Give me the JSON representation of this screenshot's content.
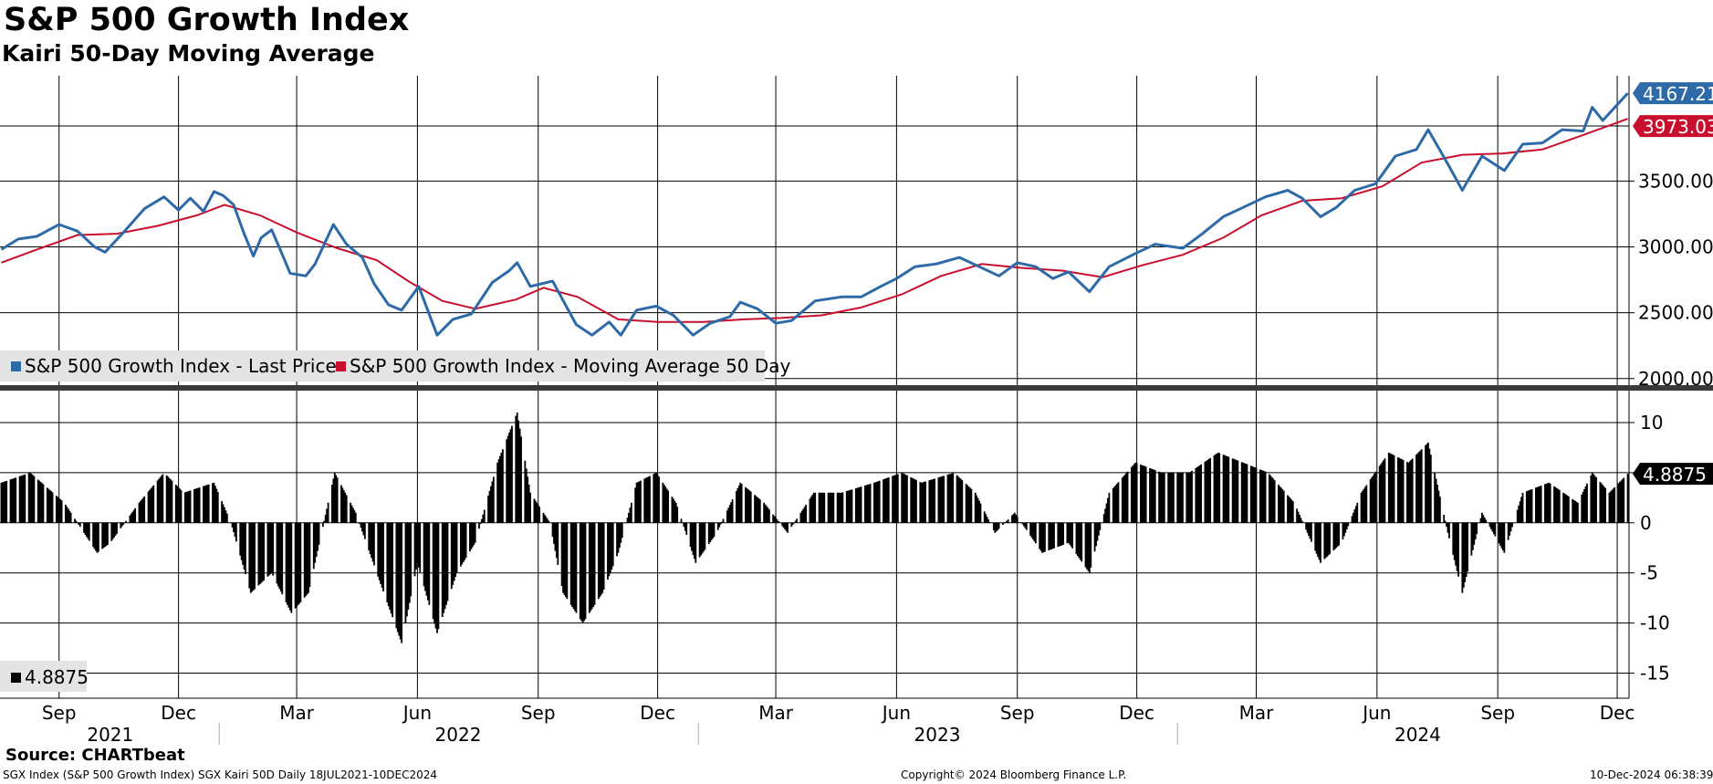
{
  "header": {
    "title": "S&P 500 Growth Index",
    "subtitle": "Kairi 50-Day Moving Average"
  },
  "legend": {
    "last_price": "S&P 500 Growth Index - Last Price",
    "moving_average": "S&P 500 Growth Index - Moving Average 50 Day",
    "kairi": "4.8875"
  },
  "footer": {
    "source": "Source: CHARTbeat",
    "series_info": "SGX Index (S&P 500 Growth Index) SGX Kairi 50D  Daily 18JUL2021-10DEC2024",
    "copyright": "Copyright© 2024 Bloomberg Finance L.P.",
    "timestamp": "10-Dec-2024 06:38:39"
  },
  "colors": {
    "price": "#2e6aa8",
    "moving_average": "#c8102e",
    "kairi": "#000000",
    "last_kairi_tag": "#000000"
  },
  "chart_data": [
    {
      "type": "line",
      "title": "S&P 500 Growth Index",
      "x_range": [
        "2021-07-18",
        "2024-12-10"
      ],
      "ylim": [
        1950,
        4300
      ],
      "y_ticks": [
        2000,
        2500,
        3000,
        3500
      ],
      "y_tick_labels": [
        "2000.00",
        "2500.00",
        "3000.00",
        "3500.00"
      ],
      "last_values": {
        "price": "4167.21",
        "moving_average": "3973.03"
      },
      "series": [
        {
          "name": "S&P 500 Growth Index - Last Price",
          "points": [
            [
              "2021-07-19",
              2980
            ],
            [
              "2021-08-01",
              3060
            ],
            [
              "2021-08-15",
              3080
            ],
            [
              "2021-09-01",
              3170
            ],
            [
              "2021-09-15",
              3120
            ],
            [
              "2021-09-28",
              3000
            ],
            [
              "2021-10-06",
              2960
            ],
            [
              "2021-10-20",
              3110
            ],
            [
              "2021-11-05",
              3290
            ],
            [
              "2021-11-20",
              3380
            ],
            [
              "2021-12-01",
              3280
            ],
            [
              "2021-12-10",
              3370
            ],
            [
              "2021-12-20",
              3270
            ],
            [
              "2021-12-28",
              3420
            ],
            [
              "2022-01-04",
              3390
            ],
            [
              "2022-01-12",
              3320
            ],
            [
              "2022-01-20",
              3100
            ],
            [
              "2022-01-27",
              2930
            ],
            [
              "2022-02-02",
              3070
            ],
            [
              "2022-02-10",
              3130
            ],
            [
              "2022-02-16",
              2990
            ],
            [
              "2022-02-24",
              2800
            ],
            [
              "2022-03-08",
              2780
            ],
            [
              "2022-03-15",
              2870
            ],
            [
              "2022-03-29",
              3170
            ],
            [
              "2022-04-08",
              3020
            ],
            [
              "2022-04-20",
              2920
            ],
            [
              "2022-04-29",
              2720
            ],
            [
              "2022-05-10",
              2560
            ],
            [
              "2022-05-20",
              2520
            ],
            [
              "2022-06-02",
              2700
            ],
            [
              "2022-06-16",
              2330
            ],
            [
              "2022-06-28",
              2450
            ],
            [
              "2022-07-12",
              2490
            ],
            [
              "2022-07-28",
              2730
            ],
            [
              "2022-08-10",
              2820
            ],
            [
              "2022-08-16",
              2880
            ],
            [
              "2022-08-26",
              2700
            ],
            [
              "2022-09-12",
              2740
            ],
            [
              "2022-09-30",
              2410
            ],
            [
              "2022-10-12",
              2330
            ],
            [
              "2022-10-25",
              2430
            ],
            [
              "2022-11-03",
              2330
            ],
            [
              "2022-11-15",
              2520
            ],
            [
              "2022-11-30",
              2550
            ],
            [
              "2022-12-13",
              2480
            ],
            [
              "2022-12-28",
              2330
            ],
            [
              "2023-01-10",
              2420
            ],
            [
              "2023-01-25",
              2470
            ],
            [
              "2023-02-02",
              2580
            ],
            [
              "2023-02-15",
              2530
            ],
            [
              "2023-03-01",
              2420
            ],
            [
              "2023-03-13",
              2440
            ],
            [
              "2023-03-31",
              2590
            ],
            [
              "2023-04-20",
              2620
            ],
            [
              "2023-05-05",
              2620
            ],
            [
              "2023-05-20",
              2700
            ],
            [
              "2023-06-01",
              2760
            ],
            [
              "2023-06-15",
              2850
            ],
            [
              "2023-07-01",
              2870
            ],
            [
              "2023-07-19",
              2920
            ],
            [
              "2023-08-03",
              2850
            ],
            [
              "2023-08-18",
              2780
            ],
            [
              "2023-09-01",
              2880
            ],
            [
              "2023-09-15",
              2850
            ],
            [
              "2023-09-28",
              2760
            ],
            [
              "2023-10-10",
              2810
            ],
            [
              "2023-10-26",
              2660
            ],
            [
              "2023-11-10",
              2850
            ],
            [
              "2023-11-30",
              2950
            ],
            [
              "2023-12-15",
              3020
            ],
            [
              "2024-01-05",
              2990
            ],
            [
              "2024-01-20",
              3100
            ],
            [
              "2024-02-05",
              3230
            ],
            [
              "2024-02-20",
              3300
            ],
            [
              "2024-03-08",
              3380
            ],
            [
              "2024-03-25",
              3430
            ],
            [
              "2024-04-05",
              3370
            ],
            [
              "2024-04-19",
              3230
            ],
            [
              "2024-05-01",
              3300
            ],
            [
              "2024-05-15",
              3430
            ],
            [
              "2024-05-31",
              3480
            ],
            [
              "2024-06-15",
              3690
            ],
            [
              "2024-07-01",
              3740
            ],
            [
              "2024-07-10",
              3890
            ],
            [
              "2024-07-25",
              3630
            ],
            [
              "2024-08-05",
              3430
            ],
            [
              "2024-08-20",
              3690
            ],
            [
              "2024-09-06",
              3580
            ],
            [
              "2024-09-20",
              3780
            ],
            [
              "2024-10-05",
              3790
            ],
            [
              "2024-10-20",
              3890
            ],
            [
              "2024-11-05",
              3880
            ],
            [
              "2024-11-12",
              4060
            ],
            [
              "2024-11-20",
              3960
            ],
            [
              "2024-12-01",
              4080
            ],
            [
              "2024-12-09",
              4167.21
            ]
          ]
        },
        {
          "name": "S&P 500 Growth Index - Moving Average 50 Day",
          "points": [
            [
              "2021-07-19",
              2880
            ],
            [
              "2021-08-15",
              2980
            ],
            [
              "2021-09-15",
              3090
            ],
            [
              "2021-10-15",
              3100
            ],
            [
              "2021-11-15",
              3160
            ],
            [
              "2021-12-15",
              3240
            ],
            [
              "2022-01-05",
              3320
            ],
            [
              "2022-02-01",
              3240
            ],
            [
              "2022-03-01",
              3110
            ],
            [
              "2022-04-01",
              2990
            ],
            [
              "2022-05-01",
              2900
            ],
            [
              "2022-05-25",
              2740
            ],
            [
              "2022-06-20",
              2590
            ],
            [
              "2022-07-15",
              2530
            ],
            [
              "2022-08-15",
              2600
            ],
            [
              "2022-09-05",
              2690
            ],
            [
              "2022-10-01",
              2620
            ],
            [
              "2022-11-01",
              2450
            ],
            [
              "2022-12-01",
              2430
            ],
            [
              "2023-01-05",
              2430
            ],
            [
              "2023-02-05",
              2450
            ],
            [
              "2023-03-05",
              2460
            ],
            [
              "2023-04-05",
              2480
            ],
            [
              "2023-05-05",
              2540
            ],
            [
              "2023-06-05",
              2640
            ],
            [
              "2023-07-05",
              2780
            ],
            [
              "2023-08-05",
              2870
            ],
            [
              "2023-09-05",
              2840
            ],
            [
              "2023-10-05",
              2820
            ],
            [
              "2023-11-05",
              2770
            ],
            [
              "2023-12-05",
              2860
            ],
            [
              "2024-01-05",
              2940
            ],
            [
              "2024-02-05",
              3070
            ],
            [
              "2024-03-05",
              3240
            ],
            [
              "2024-04-05",
              3350
            ],
            [
              "2024-05-05",
              3370
            ],
            [
              "2024-06-05",
              3460
            ],
            [
              "2024-07-05",
              3640
            ],
            [
              "2024-08-05",
              3700
            ],
            [
              "2024-09-05",
              3710
            ],
            [
              "2024-10-05",
              3740
            ],
            [
              "2024-11-05",
              3850
            ],
            [
              "2024-12-09",
              3973.03
            ]
          ]
        }
      ]
    },
    {
      "type": "bar",
      "title": "Kairi 50-Day Moving Average",
      "x_range": [
        "2021-07-18",
        "2024-12-10"
      ],
      "ylim": [
        -17.5,
        13
      ],
      "y_ticks": [
        -15,
        -10,
        -5,
        0,
        5,
        10
      ],
      "y_tick_labels": [
        "-15",
        "-10",
        "-5",
        "0",
        "5",
        "10"
      ],
      "last_value": "4.8875",
      "series": [
        {
          "name": "Kairi 50D",
          "points": [
            [
              "2021-07-19",
              4
            ],
            [
              "2021-08-10",
              5
            ],
            [
              "2021-09-05",
              2
            ],
            [
              "2021-09-30",
              -3
            ],
            [
              "2021-10-10",
              -2
            ],
            [
              "2021-11-01",
              2
            ],
            [
              "2021-11-20",
              5
            ],
            [
              "2021-12-05",
              3
            ],
            [
              "2021-12-28",
              4
            ],
            [
              "2022-01-10",
              0
            ],
            [
              "2022-01-25",
              -7
            ],
            [
              "2022-02-10",
              -5
            ],
            [
              "2022-02-25",
              -9
            ],
            [
              "2022-03-10",
              -7
            ],
            [
              "2022-03-30",
              5
            ],
            [
              "2022-04-15",
              1
            ],
            [
              "2022-05-01",
              -5
            ],
            [
              "2022-05-20",
              -12
            ],
            [
              "2022-06-01",
              -4
            ],
            [
              "2022-06-16",
              -11
            ],
            [
              "2022-07-01",
              -5
            ],
            [
              "2022-07-15",
              -2
            ],
            [
              "2022-08-01",
              6
            ],
            [
              "2022-08-16",
              11
            ],
            [
              "2022-08-26",
              3
            ],
            [
              "2022-09-10",
              0
            ],
            [
              "2022-09-20",
              -7
            ],
            [
              "2022-10-05",
              -10
            ],
            [
              "2022-10-20",
              -7
            ],
            [
              "2022-11-01",
              -3
            ],
            [
              "2022-11-15",
              4
            ],
            [
              "2022-11-30",
              5
            ],
            [
              "2022-12-15",
              2
            ],
            [
              "2022-12-30",
              -4
            ],
            [
              "2023-01-15",
              -1
            ],
            [
              "2023-02-02",
              4
            ],
            [
              "2023-02-20",
              2
            ],
            [
              "2023-03-10",
              -1
            ],
            [
              "2023-03-30",
              3
            ],
            [
              "2023-04-20",
              3
            ],
            [
              "2023-05-15",
              4
            ],
            [
              "2023-06-05",
              5
            ],
            [
              "2023-06-20",
              4
            ],
            [
              "2023-07-15",
              5
            ],
            [
              "2023-07-31",
              3
            ],
            [
              "2023-08-15",
              -1
            ],
            [
              "2023-08-30",
              1
            ],
            [
              "2023-09-20",
              -3
            ],
            [
              "2023-10-10",
              -2
            ],
            [
              "2023-10-26",
              -5
            ],
            [
              "2023-11-10",
              3
            ],
            [
              "2023-11-30",
              6
            ],
            [
              "2023-12-20",
              5
            ],
            [
              "2024-01-10",
              5
            ],
            [
              "2024-02-01",
              7
            ],
            [
              "2024-02-20",
              6
            ],
            [
              "2024-03-10",
              5
            ],
            [
              "2024-03-30",
              2
            ],
            [
              "2024-04-19",
              -4
            ],
            [
              "2024-05-05",
              -2
            ],
            [
              "2024-05-20",
              3
            ],
            [
              "2024-06-10",
              7
            ],
            [
              "2024-06-25",
              6
            ],
            [
              "2024-07-10",
              8
            ],
            [
              "2024-07-25",
              -1
            ],
            [
              "2024-08-05",
              -7
            ],
            [
              "2024-08-20",
              1
            ],
            [
              "2024-09-06",
              -3
            ],
            [
              "2024-09-20",
              3
            ],
            [
              "2024-10-10",
              4
            ],
            [
              "2024-11-01",
              2
            ],
            [
              "2024-11-12",
              5
            ],
            [
              "2024-11-25",
              3
            ],
            [
              "2024-12-09",
              4.8875
            ]
          ]
        }
      ]
    }
  ],
  "x_axis": {
    "month_ticks": [
      {
        "date": "2021-09-01",
        "label": "Sep"
      },
      {
        "date": "2021-12-01",
        "label": "Dec"
      },
      {
        "date": "2022-03-01",
        "label": "Mar"
      },
      {
        "date": "2022-06-01",
        "label": "Jun"
      },
      {
        "date": "2022-09-01",
        "label": "Sep"
      },
      {
        "date": "2022-12-01",
        "label": "Dec"
      },
      {
        "date": "2023-03-01",
        "label": "Mar"
      },
      {
        "date": "2023-06-01",
        "label": "Jun"
      },
      {
        "date": "2023-09-01",
        "label": "Sep"
      },
      {
        "date": "2023-12-01",
        "label": "Dec"
      },
      {
        "date": "2024-03-01",
        "label": "Mar"
      },
      {
        "date": "2024-06-01",
        "label": "Jun"
      },
      {
        "date": "2024-09-01",
        "label": "Sep"
      },
      {
        "date": "2024-12-01",
        "label": "Dec"
      }
    ],
    "year_labels": [
      {
        "label": "2021",
        "center": "2021-10-10"
      },
      {
        "label": "2022",
        "center": "2022-07-02"
      },
      {
        "label": "2023",
        "center": "2023-07-02"
      },
      {
        "label": "2024",
        "center": "2024-07-02"
      }
    ],
    "year_boundaries": [
      "2022-01-01",
      "2023-01-01",
      "2024-01-01"
    ]
  }
}
